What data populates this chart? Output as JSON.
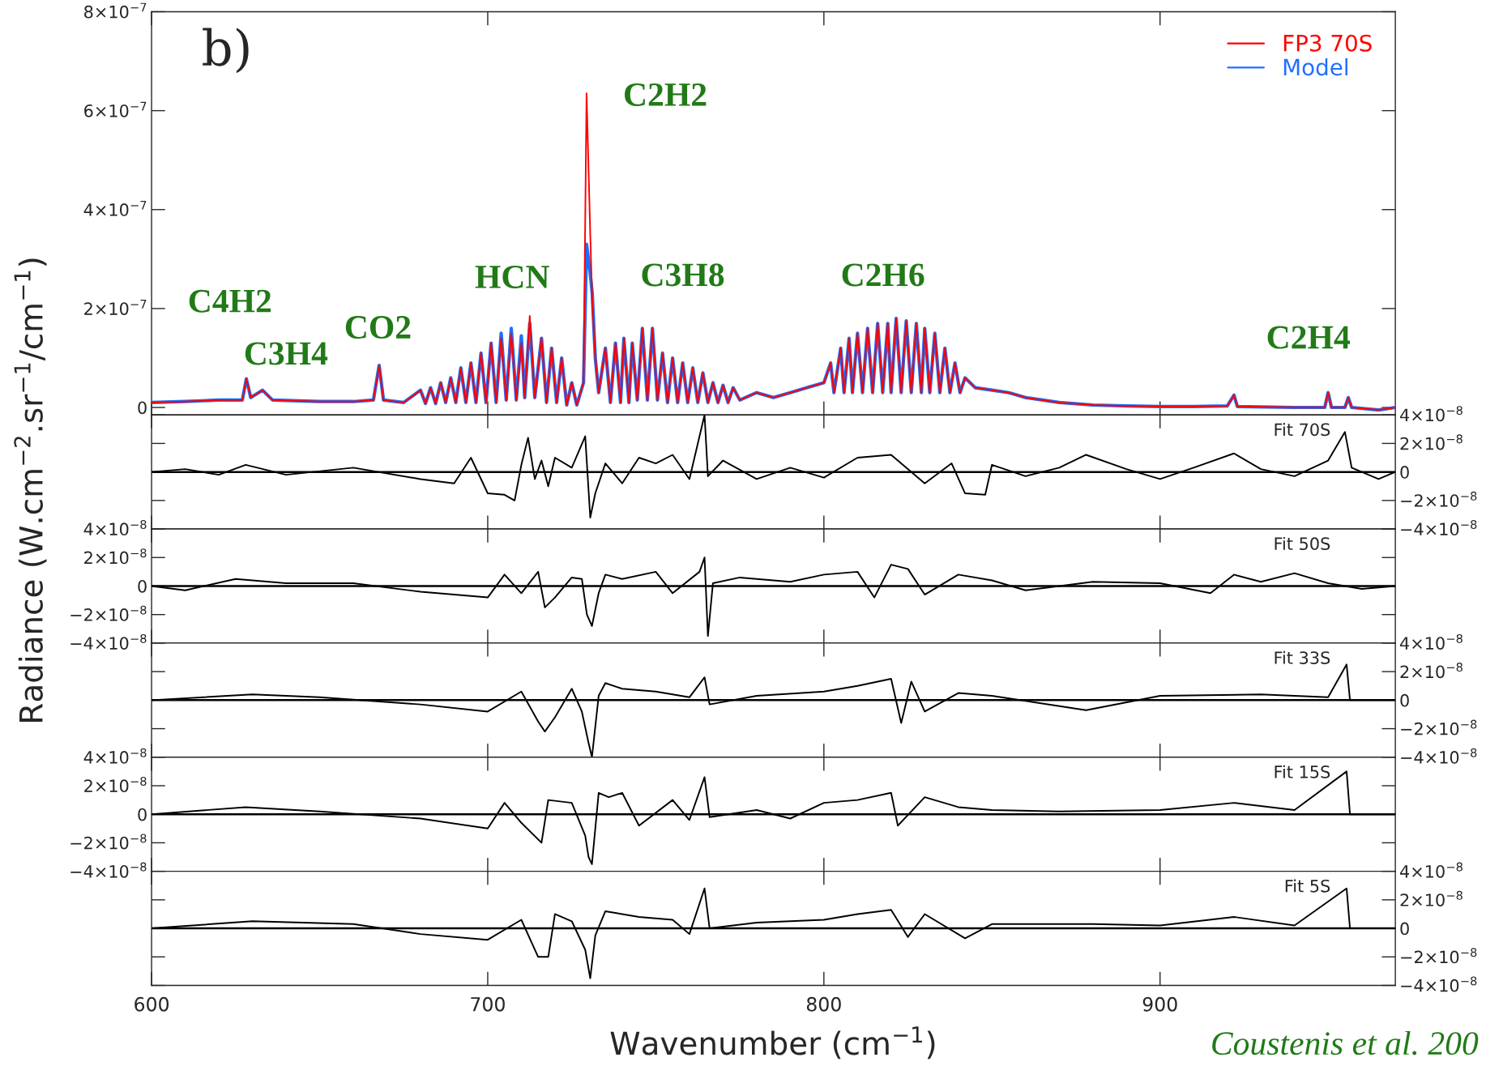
{
  "chart_data": [
    {
      "type": "line",
      "title": "b)",
      "ylabel": "Radiance (W.cm$^{−2}$.sr$^{−1}$/cm$^{−1}$)",
      "x": [
        600,
        610,
        620,
        627,
        628.2,
        629.5,
        633,
        636,
        650,
        660,
        666,
        667.7,
        669,
        675,
        680,
        681.5,
        683,
        684.5,
        686,
        687.5,
        689,
        690.5,
        692,
        693.5,
        695,
        696.5,
        698,
        699.5,
        701,
        702.5,
        704,
        705.5,
        707,
        708.5,
        710,
        711,
        712.5,
        714,
        716,
        717.5,
        719,
        720.5,
        722,
        723.5,
        725,
        726.5,
        728.5,
        729.4,
        730.5,
        731.1,
        732,
        733,
        735,
        736.5,
        738,
        739.5,
        740.5,
        742,
        743,
        744.5,
        746,
        747.5,
        749,
        750.5,
        752,
        753.5,
        755,
        756.5,
        758,
        759.5,
        761,
        762.5,
        764,
        765.5,
        767,
        768.5,
        770,
        771.5,
        773,
        775,
        780,
        785,
        790,
        795,
        800,
        802,
        803,
        805,
        806,
        807.5,
        808.5,
        810,
        811.5,
        813,
        814.5,
        816,
        817.5,
        819,
        820,
        821.5,
        823,
        824.5,
        826,
        827.5,
        829,
        830,
        831.5,
        833,
        834.5,
        836,
        837.5,
        839,
        840.5,
        842,
        845,
        850,
        855,
        860,
        870,
        880,
        890,
        900,
        910,
        920,
        922,
        923,
        940,
        949,
        950,
        951,
        955,
        956,
        957,
        965,
        970
      ],
      "series": [
        {
          "name": "FP3 70S",
          "color": "#ff0000",
          "values": [
            1e-08,
            1.2e-08,
            1.5e-08,
            1.5e-08,
            5.8e-08,
            2e-08,
            3.5e-08,
            1.5e-08,
            1.2e-08,
            1.2e-08,
            1.5e-08,
            8.5e-08,
            1.5e-08,
            1e-08,
            3.5e-08,
            8e-09,
            4e-08,
            8e-09,
            5e-08,
            1e-08,
            6e-08,
            1e-08,
            8e-08,
            1e-08,
            9e-08,
            1e-08,
            1.1e-07,
            1e-08,
            1.3e-07,
            1e-08,
            1.4e-07,
            1.5e-08,
            1.5e-07,
            1.5e-08,
            1.3e-07,
            2e-08,
            1.85e-07,
            2e-08,
            1.4e-07,
            1e-08,
            1.2e-07,
            1e-08,
            1e-07,
            5e-09,
            5e-08,
            5e-09,
            5e-08,
            6.35e-07,
            3.5e-07,
            2.1e-07,
            1e-07,
            3e-08,
            1.2e-07,
            1e-08,
            1.3e-07,
            1e-08,
            1.4e-07,
            1e-08,
            1.3e-07,
            1.5e-08,
            1.6e-07,
            1.5e-08,
            1.6e-07,
            1.5e-08,
            1.1e-07,
            1e-08,
            1e-07,
            1e-08,
            9e-08,
            1e-08,
            8e-08,
            1e-08,
            7e-08,
            1e-08,
            5e-08,
            1e-08,
            4.5e-08,
            1e-08,
            4e-08,
            1.5e-08,
            3e-08,
            2e-08,
            3e-08,
            4e-08,
            5e-08,
            9e-08,
            3e-08,
            1.2e-07,
            3e-08,
            1.4e-07,
            3e-08,
            1.5e-07,
            3e-08,
            1.6e-07,
            3e-08,
            1.7e-07,
            3e-08,
            1.7e-07,
            3e-08,
            1.8e-07,
            3e-08,
            1.75e-07,
            3e-08,
            1.7e-07,
            3e-08,
            1.6e-07,
            3e-08,
            1.5e-07,
            3e-08,
            1.2e-07,
            3e-08,
            9e-08,
            3e-08,
            6e-08,
            4e-08,
            3.5e-08,
            3e-08,
            2e-08,
            1e-08,
            5e-09,
            3e-09,
            2e-09,
            2e-09,
            3e-09,
            2.5e-08,
            2e-09,
            0,
            0,
            3e-08,
            0,
            0,
            2e-08,
            0,
            -5e-09,
            0
          ]
        },
        {
          "name": "Model",
          "color": "#1f6fff",
          "values": [
            1e-08,
            1.2e-08,
            1.5e-08,
            1.5e-08,
            5.8e-08,
            2e-08,
            3.5e-08,
            1.5e-08,
            1.2e-08,
            1.2e-08,
            1.5e-08,
            8.5e-08,
            1.5e-08,
            1e-08,
            3.5e-08,
            8e-09,
            4e-08,
            8e-09,
            5e-08,
            1e-08,
            6e-08,
            1e-08,
            8e-08,
            1e-08,
            9e-08,
            1e-08,
            1.1e-07,
            1e-08,
            1.3e-07,
            1e-08,
            1.5e-07,
            1.5e-08,
            1.6e-07,
            1.5e-08,
            1.45e-07,
            2e-08,
            1.7e-07,
            2e-08,
            1.4e-07,
            1e-08,
            1.2e-07,
            1e-08,
            1e-07,
            5e-09,
            5e-08,
            5e-09,
            5e-08,
            3.3e-07,
            2.7e-07,
            2.3e-07,
            1e-07,
            3e-08,
            1.2e-07,
            1e-08,
            1.3e-07,
            1e-08,
            1.4e-07,
            1e-08,
            1.3e-07,
            1.5e-08,
            1.6e-07,
            1.5e-08,
            1.6e-07,
            1.5e-08,
            1.1e-07,
            1e-08,
            1e-07,
            1e-08,
            9e-08,
            1e-08,
            8e-08,
            1e-08,
            7e-08,
            1e-08,
            5e-08,
            1e-08,
            4.5e-08,
            1e-08,
            4e-08,
            1.5e-08,
            3e-08,
            2e-08,
            3e-08,
            4e-08,
            5e-08,
            9e-08,
            3e-08,
            1.2e-07,
            3e-08,
            1.4e-07,
            3e-08,
            1.5e-07,
            3e-08,
            1.6e-07,
            3e-08,
            1.7e-07,
            3e-08,
            1.7e-07,
            3e-08,
            1.8e-07,
            3e-08,
            1.75e-07,
            3e-08,
            1.7e-07,
            3e-08,
            1.6e-07,
            3e-08,
            1.5e-07,
            3e-08,
            1.2e-07,
            3e-08,
            9e-08,
            3e-08,
            6e-08,
            4e-08,
            3.5e-08,
            3e-08,
            2e-08,
            1e-08,
            5e-09,
            3e-09,
            2e-09,
            2e-09,
            3e-09,
            2.5e-08,
            2e-09,
            0,
            0,
            3e-08,
            0,
            0,
            2e-08,
            0,
            -5e-09,
            0
          ]
        }
      ],
      "xlim": [
        600,
        970
      ],
      "xticks": [
        600,
        700,
        800,
        900
      ],
      "ylim": [
        -1.5e-08,
        8e-07
      ],
      "yticks": [
        0,
        {
          "value": 2e-07,
          "label": "2×10$^{−7}$"
        },
        {
          "value": 4e-07,
          "label": "4×10$^{−7}$"
        },
        {
          "value": 6e-07,
          "label": "6×10$^{−7}$"
        },
        {
          "value": 8e-07,
          "label": "8×10$^{−7}$"
        }
      ],
      "tick_labels": "y",
      "legend": "top right",
      "annotations": [
        "C4H2",
        "C3H4",
        "CO2",
        "HCN",
        "C2H2",
        "C3H8",
        "C2H6",
        "C2H4"
      ]
    },
    {
      "type": "line",
      "title": "Fit 70S",
      "x": [
        600,
        610,
        620,
        628,
        640,
        660,
        680,
        690,
        695,
        700,
        705,
        708,
        710,
        712,
        714,
        716,
        718,
        720,
        725,
        729,
        730.5,
        732,
        735,
        740,
        745,
        750,
        755,
        760,
        764.5,
        765.5,
        770,
        780,
        790,
        800,
        810,
        820,
        830,
        838,
        842,
        848,
        850,
        860,
        870,
        878,
        890,
        900,
        910,
        922,
        930,
        940,
        950,
        955,
        957,
        965,
        970
      ],
      "series": [
        {
          "axis": "y2",
          "color": "#000000",
          "values": [
            0,
            2e-09,
            -2e-09,
            5e-09,
            -2e-09,
            3e-09,
            -5e-09,
            -8e-09,
            1e-08,
            -1.5e-08,
            -1.6e-08,
            -2e-08,
            5e-09,
            2.4e-08,
            -5e-09,
            8e-09,
            -1e-08,
            1e-08,
            3e-09,
            2.5e-08,
            -3.2e-08,
            -1.5e-08,
            6e-09,
            -8e-09,
            1e-08,
            6e-09,
            1.2e-08,
            -5e-09,
            4e-08,
            -3e-09,
            8e-09,
            -5e-09,
            3e-09,
            -4e-09,
            1e-08,
            1.2e-08,
            -8e-09,
            6e-09,
            -1.5e-08,
            -1.6e-08,
            5e-09,
            -3e-09,
            3e-09,
            1.2e-08,
            2e-09,
            -5e-09,
            3e-09,
            1.3e-08,
            2e-09,
            -3e-09,
            8e-09,
            2.8e-08,
            3e-09,
            -5e-09,
            0
          ]
        }
      ],
      "xlim": [
        600,
        970
      ],
      "xticks": [
        600,
        700,
        800,
        900
      ],
      "y2lim": [
        -4e-08,
        4e-08
      ],
      "y2ticks": [
        {
          "value": -4e-08,
          "label": "−4×10$^{−8}$"
        },
        {
          "value": -2e-08,
          "label": "−2×10$^{−8}$"
        },
        0,
        {
          "value": 2e-08,
          "label": "2×10$^{−8}$"
        },
        {
          "value": 4e-08,
          "label": "4×10$^{−8}$"
        }
      ],
      "tick_labels": "y",
      "ref_lines": [
        {
          "axis": "y2",
          "value": 0
        }
      ]
    },
    {
      "type": "line",
      "title": "Fit 50S",
      "x": [
        600,
        610,
        625,
        640,
        660,
        680,
        700,
        705,
        710,
        715,
        717,
        720,
        725,
        728,
        729.5,
        731,
        733,
        735,
        740,
        750,
        755,
        763,
        764.5,
        765.5,
        767,
        775,
        790,
        800,
        810,
        815,
        820,
        825,
        830,
        840,
        850,
        860,
        880,
        900,
        915,
        922,
        930,
        940,
        950,
        960,
        970
      ],
      "series": [
        {
          "color": "#000000",
          "values": [
            0,
            -3e-09,
            5e-09,
            2e-09,
            2e-09,
            -4e-09,
            -8e-09,
            8e-09,
            -5e-09,
            1e-08,
            -1.5e-08,
            -8e-09,
            6e-09,
            5e-09,
            -2e-08,
            -2.8e-08,
            -5e-09,
            8e-09,
            5e-09,
            1e-08,
            -5e-09,
            1e-08,
            2e-08,
            -3.5e-08,
            2e-09,
            6e-09,
            3e-09,
            8e-09,
            1e-08,
            -8e-09,
            1.5e-08,
            1.2e-08,
            -6e-09,
            8e-09,
            4e-09,
            -3e-09,
            3e-09,
            2e-09,
            -5e-09,
            8e-09,
            3e-09,
            9e-09,
            2e-09,
            -2e-09,
            0
          ]
        }
      ],
      "xlim": [
        600,
        970
      ],
      "xticks": [
        600,
        700,
        800,
        900
      ],
      "ylim": [
        -4e-08,
        4e-08
      ],
      "yticks": [
        {
          "value": -4e-08,
          "label": "−4×10$^{−8}$"
        },
        {
          "value": -2e-08,
          "label": "−2×10$^{−8}$"
        },
        0,
        {
          "value": 2e-08,
          "label": "2×10$^{−8}$"
        },
        {
          "value": 4e-08,
          "label": "4×10$^{−8}$"
        }
      ],
      "tick_labels": "y",
      "ref_lines": [
        {
          "axis": "y",
          "value": 0
        }
      ]
    },
    {
      "type": "line",
      "title": "Fit 33S",
      "x": [
        600,
        630,
        650,
        680,
        700,
        710,
        715,
        717,
        720,
        725,
        728,
        730,
        731,
        733,
        735,
        740,
        750,
        760,
        764.5,
        766,
        780,
        800,
        810,
        820,
        823,
        826,
        830,
        840,
        850,
        878,
        900,
        930,
        950,
        955.5,
        956.5,
        970
      ],
      "series": [
        {
          "axis": "y2",
          "color": "#000000",
          "values": [
            0,
            4e-09,
            2e-09,
            -3e-09,
            -8e-09,
            6e-09,
            -1.5e-08,
            -2.2e-08,
            -1.2e-08,
            8e-09,
            -8e-09,
            -3e-08,
            -4e-08,
            3e-09,
            1.2e-08,
            8e-09,
            6e-09,
            2e-09,
            1.6e-08,
            -3e-09,
            3e-09,
            6e-09,
            1e-08,
            1.5e-08,
            -1.6e-08,
            1.3e-08,
            -8e-09,
            5e-09,
            3e-09,
            -7e-09,
            3e-09,
            4e-09,
            2e-09,
            2.5e-08,
            0,
            0
          ]
        }
      ],
      "xlim": [
        600,
        970
      ],
      "xticks": [
        600,
        700,
        800,
        900
      ],
      "y2lim": [
        -4e-08,
        4e-08
      ],
      "y2ticks": [
        {
          "value": -4e-08,
          "label": "−4×10$^{−8}$"
        },
        {
          "value": -2e-08,
          "label": "−2×10$^{−8}$"
        },
        0,
        {
          "value": 2e-08,
          "label": "2×10$^{−8}$"
        },
        {
          "value": 4e-08,
          "label": "4×10$^{−8}$"
        }
      ],
      "tick_labels": "y",
      "ref_lines": [
        {
          "axis": "y2",
          "value": 0
        }
      ]
    },
    {
      "type": "line",
      "title": "Fit 15S",
      "x": [
        600,
        628,
        650,
        680,
        700,
        705,
        710,
        716,
        718,
        725,
        729,
        730,
        731,
        733,
        736,
        740,
        745,
        755,
        760,
        764.5,
        766,
        780,
        790,
        800,
        810,
        820,
        822,
        830,
        840,
        850,
        870,
        900,
        922,
        940,
        955.5,
        956.5,
        970
      ],
      "series": [
        {
          "color": "#000000",
          "values": [
            0,
            5e-09,
            2e-09,
            -3e-09,
            -1e-08,
            8e-09,
            -6e-09,
            -2e-08,
            1e-08,
            8e-09,
            -1.5e-08,
            -3e-08,
            -3.5e-08,
            1.5e-08,
            1.2e-08,
            1.5e-08,
            -8e-09,
            1e-08,
            -4e-09,
            2.6e-08,
            -2e-09,
            3e-09,
            -3e-09,
            8e-09,
            1e-08,
            1.5e-08,
            -8e-09,
            1.2e-08,
            5e-09,
            3e-09,
            2e-09,
            3e-09,
            8e-09,
            3e-09,
            3e-08,
            0,
            0
          ]
        }
      ],
      "xlim": [
        600,
        970
      ],
      "xticks": [
        600,
        700,
        800,
        900
      ],
      "ylim": [
        -4e-08,
        4e-08
      ],
      "yticks": [
        {
          "value": -4e-08,
          "label": "−4×10$^{−8}$"
        },
        {
          "value": -2e-08,
          "label": "−2×10$^{−8}$"
        },
        0,
        {
          "value": 2e-08,
          "label": "2×10$^{−8}$"
        },
        {
          "value": 4e-08,
          "label": "4×10$^{−8}$"
        }
      ],
      "tick_labels": "y",
      "ref_lines": [
        {
          "axis": "y",
          "value": 0
        }
      ]
    },
    {
      "type": "line",
      "title": "Fit 5S",
      "xlabel": "Wavenumber (cm$^{−1}$)",
      "x": [
        600,
        630,
        660,
        680,
        700,
        710,
        715,
        718,
        720,
        725,
        729,
        730.5,
        732,
        735,
        745,
        755,
        760,
        764.5,
        766,
        780,
        800,
        810,
        820,
        825,
        830,
        842,
        850,
        880,
        900,
        922,
        940,
        955.5,
        956.5,
        970
      ],
      "series": [
        {
          "axis": "y2",
          "color": "#000000",
          "values": [
            0,
            5e-09,
            3e-09,
            -4e-09,
            -8e-09,
            6e-09,
            -2e-08,
            -2e-08,
            1e-08,
            5e-09,
            -1.5e-08,
            -3.5e-08,
            -5e-09,
            1.2e-08,
            8e-09,
            6e-09,
            -4e-09,
            2.8e-08,
            0,
            4e-09,
            6e-09,
            1e-08,
            1.3e-08,
            -6e-09,
            1e-08,
            -7e-09,
            3e-09,
            3e-09,
            2e-09,
            8e-09,
            2e-09,
            2.8e-08,
            0,
            0
          ]
        }
      ],
      "xlim": [
        600,
        970
      ],
      "xticks": [
        600,
        700,
        800,
        900
      ],
      "y2lim": [
        -4e-08,
        4e-08
      ],
      "y2ticks": [
        {
          "value": -4e-08,
          "label": "−4×10$^{−8}$"
        },
        {
          "value": -2e-08,
          "label": "−2×10$^{−8}$"
        },
        0,
        {
          "value": 2e-08,
          "label": "2×10$^{−8}$"
        },
        {
          "value": 4e-08,
          "label": "4×10$^{−8}$"
        }
      ],
      "ref_lines": [
        {
          "axis": "y2",
          "value": 0
        }
      ],
      "annotations": [
        "Coustenis et al. 200"
      ]
    }
  ]
}
